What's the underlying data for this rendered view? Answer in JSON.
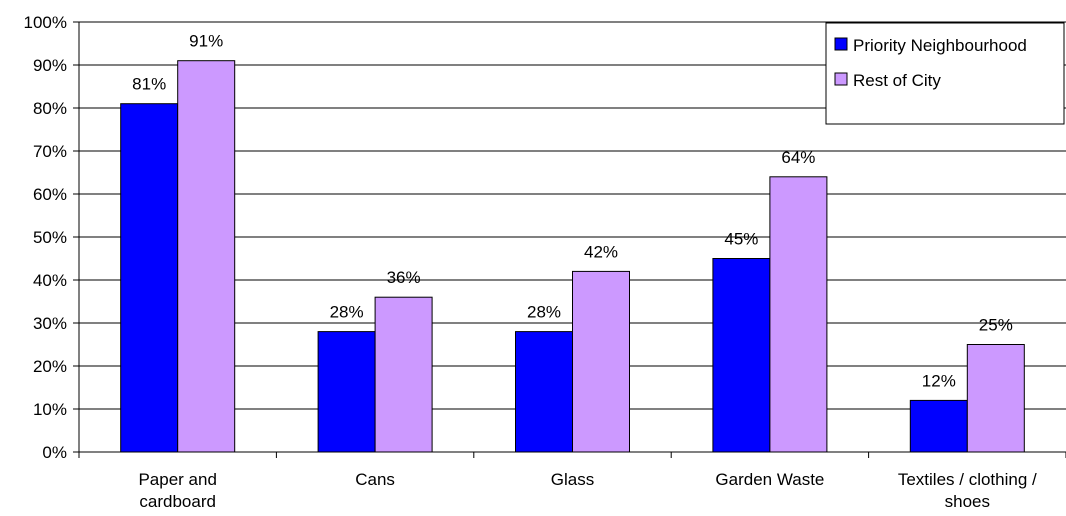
{
  "chart_data": {
    "type": "bar",
    "categories": [
      [
        "Paper and",
        "cardboard"
      ],
      [
        "Cans"
      ],
      [
        "Glass"
      ],
      [
        "Garden Waste"
      ],
      [
        "Textiles / clothing /",
        "shoes"
      ]
    ],
    "series": [
      {
        "name": "Priority Neighbourhood",
        "values": [
          0.81,
          0.28,
          0.28,
          0.45,
          0.12
        ],
        "labels": [
          "81%",
          "28%",
          "28%",
          "45%",
          "12%"
        ],
        "color": "#0000FF"
      },
      {
        "name": "Rest of City",
        "values": [
          0.91,
          0.36,
          0.42,
          0.64,
          0.25
        ],
        "labels": [
          "91%",
          "36%",
          "42%",
          "64%",
          "25%"
        ],
        "color": "#CC99FF"
      }
    ],
    "yticks": [
      "0%",
      "10%",
      "20%",
      "30%",
      "40%",
      "50%",
      "60%",
      "70%",
      "80%",
      "90%",
      "100%"
    ],
    "ylim": [
      0,
      1
    ],
    "grid": true,
    "legend_position": "top-right"
  }
}
